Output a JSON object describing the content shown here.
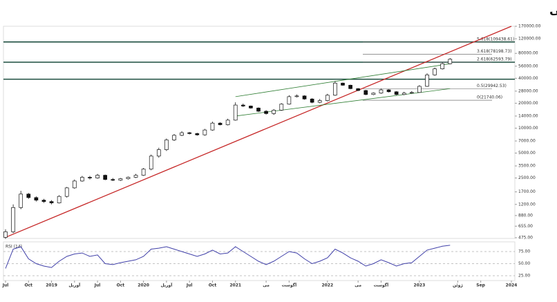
{
  "chart_data": {
    "type": "candlestick",
    "title": "فینتا – تایم فریم هفتگی",
    "log_scale": true,
    "x": [
      "2018-07",
      "2018-08",
      "2018-09",
      "2018-10",
      "2018-11",
      "2018-12",
      "2019-01",
      "2019-02",
      "2019-03",
      "2019-04",
      "2019-05",
      "2019-06",
      "2019-07",
      "2019-08",
      "2019-09",
      "2019-10",
      "2019-11",
      "2019-12",
      "2020-01",
      "2020-02",
      "2020-03",
      "2020-04",
      "2020-05",
      "2020-06",
      "2020-07",
      "2020-08",
      "2020-09",
      "2020-10",
      "2020-11",
      "2020-12",
      "2021-01",
      "2021-02",
      "2021-03",
      "2021-04",
      "2021-05",
      "2021-06",
      "2021-07",
      "2021-08",
      "2021-09",
      "2021-10",
      "2021-11",
      "2021-12",
      "2022-01",
      "2022-02",
      "2022-03",
      "2022-04",
      "2022-05",
      "2022-06",
      "2022-07",
      "2022-08",
      "2022-09",
      "2022-10",
      "2022-11",
      "2022-12",
      "2023-01",
      "2023-02",
      "2023-03",
      "2023-04",
      "2023-05"
    ],
    "open": [
      480,
      560,
      1100,
      1600,
      1450,
      1350,
      1300,
      1250,
      1500,
      1900,
      2300,
      2550,
      2500,
      2700,
      2400,
      2350,
      2450,
      2550,
      2700,
      3200,
      4600,
      5500,
      7200,
      8200,
      8800,
      8600,
      8300,
      9500,
      11500,
      11000,
      12500,
      19000,
      18500,
      17500,
      16000,
      15000,
      16500,
      19500,
      24000,
      24500,
      22500,
      20500,
      21500,
      25000,
      35000,
      33000,
      30000,
      28500,
      25500,
      26500,
      29000,
      27500,
      25500,
      26500,
      27000,
      32000,
      44000,
      52000,
      60000
    ],
    "high": [
      600,
      1200,
      1750,
      1650,
      1500,
      1400,
      1350,
      1550,
      1950,
      2400,
      2650,
      2650,
      2800,
      2750,
      2500,
      2500,
      2600,
      2800,
      3300,
      4800,
      5800,
      7500,
      8500,
      9200,
      9000,
      8800,
      9800,
      12000,
      11800,
      13000,
      20500,
      19800,
      18800,
      17800,
      16500,
      17000,
      20000,
      25000,
      25500,
      25000,
      23000,
      22500,
      26000,
      37000,
      35500,
      33500,
      30500,
      29000,
      27000,
      30000,
      29500,
      28000,
      27500,
      28000,
      33000,
      46000,
      54000,
      62000,
      70000
    ],
    "low": [
      460,
      540,
      1050,
      1400,
      1300,
      1250,
      1200,
      1230,
      1450,
      1850,
      2250,
      2400,
      2450,
      2350,
      2300,
      2300,
      2400,
      2500,
      2650,
      3100,
      4400,
      5300,
      7000,
      8000,
      8400,
      8100,
      8100,
      9300,
      10800,
      10800,
      12300,
      18000,
      17200,
      15700,
      14600,
      14500,
      16200,
      19200,
      23500,
      22000,
      20000,
      20000,
      21000,
      24500,
      32500,
      29500,
      28000,
      25000,
      25000,
      26000,
      27000,
      25000,
      25000,
      26000,
      26800,
      31500,
      43000,
      51000,
      59000
    ],
    "close": [
      560,
      1100,
      1600,
      1450,
      1350,
      1300,
      1250,
      1500,
      1900,
      2300,
      2550,
      2500,
      2700,
      2400,
      2350,
      2450,
      2550,
      2700,
      3200,
      4600,
      5500,
      7200,
      8200,
      8800,
      8600,
      8300,
      9500,
      11500,
      11000,
      12500,
      19000,
      18500,
      17500,
      16000,
      15000,
      16500,
      19500,
      24000,
      24500,
      22500,
      20500,
      21500,
      25000,
      35000,
      33000,
      30000,
      28500,
      25500,
      26500,
      29000,
      27500,
      25500,
      26500,
      27000,
      32000,
      44000,
      52000,
      60000,
      68000
    ],
    "ylim": [
      475,
      170000
    ],
    "yticks": [
      {
        "value": 170000,
        "label": "170000.00"
      },
      {
        "value": 120000,
        "label": "120000.00"
      },
      {
        "value": 80000,
        "label": "80000.00"
      },
      {
        "value": 56000,
        "label": "56000.00"
      },
      {
        "value": 40000,
        "label": "40000.00"
      },
      {
        "value": 28000,
        "label": "28000.00"
      },
      {
        "value": 20000,
        "label": "20000.00"
      },
      {
        "value": 14000,
        "label": "14000.00"
      },
      {
        "value": 10000,
        "label": "10000.00"
      },
      {
        "value": 7000,
        "label": "7000.00"
      },
      {
        "value": 5000,
        "label": "5000.00"
      },
      {
        "value": 3500,
        "label": "3500.00"
      },
      {
        "value": 2500,
        "label": "2500.00"
      },
      {
        "value": 1700,
        "label": "1700.00"
      },
      {
        "value": 1200,
        "label": "1200.00"
      },
      {
        "value": 880,
        "label": "880.00"
      },
      {
        "value": 655,
        "label": "655.00"
      },
      {
        "value": 475,
        "label": "475.00"
      }
    ],
    "xlim": [
      "2018-07",
      "2024-01"
    ],
    "xticks": [
      {
        "value": "2018-07",
        "label": "Jul"
      },
      {
        "value": "2018-10",
        "label": "Oct"
      },
      {
        "value": "2019-01",
        "label": "2019"
      },
      {
        "value": "2019-04",
        "label": "آوریل"
      },
      {
        "value": "2019-07",
        "label": "Jul"
      },
      {
        "value": "2019-10",
        "label": "Oct"
      },
      {
        "value": "2020-01",
        "label": "2020"
      },
      {
        "value": "2020-04",
        "label": "آوریل"
      },
      {
        "value": "2020-07",
        "label": "Jul"
      },
      {
        "value": "2020-10",
        "label": "Oct"
      },
      {
        "value": "2021-01",
        "label": "2021"
      },
      {
        "value": "2021-05",
        "label": "می"
      },
      {
        "value": "2021-08",
        "label": "آگوست"
      },
      {
        "value": "2022-01",
        "label": "2022"
      },
      {
        "value": "2022-05",
        "label": "می"
      },
      {
        "value": "2022-08",
        "label": "آگوست"
      },
      {
        "value": "2023-01",
        "label": "2023"
      },
      {
        "value": "2023-06",
        "label": "ژوئن"
      },
      {
        "value": "2023-09",
        "label": "Sep"
      },
      {
        "value": "2024-01",
        "label": "2024"
      }
    ],
    "fib_levels": [
      {
        "value": 109438.61,
        "label": "5.618(109438.61)"
      },
      {
        "value": 78198.73,
        "label": "3.618(78198.73)"
      },
      {
        "value": 62593.79,
        "label": "2.618(62593.79)"
      },
      {
        "value": 29942.53,
        "label": "0.5(29942.53)"
      },
      {
        "value": 21740.06,
        "label": "0(21740.06)"
      }
    ],
    "levels": [
      110000,
      62600,
      39000
    ],
    "trendlines": [
      {
        "color": "#c62828",
        "x": [
          "2018-07",
          "2024-01"
        ],
        "values": [
          480,
          170000
        ]
      },
      {
        "color": "#2e7d32",
        "x": [
          "2021-01",
          "2023-05"
        ],
        "values": [
          24000,
          60000
        ]
      },
      {
        "color": "#2e7d32",
        "x": [
          "2021-01",
          "2023-05"
        ],
        "values": [
          14000,
          30000
        ]
      }
    ],
    "rsi": {
      "name": "RSI (14)",
      "color": "#3f3fa8",
      "ylim": [
        15,
        95
      ],
      "yticks": [
        {
          "value": 75,
          "label": "75.00"
        },
        {
          "value": 50,
          "label": "50.00"
        },
        {
          "value": 25,
          "label": "25.00"
        }
      ],
      "values": [
        40,
        80,
        85,
        60,
        50,
        45,
        42,
        55,
        65,
        70,
        72,
        65,
        68,
        50,
        48,
        52,
        55,
        58,
        65,
        80,
        82,
        85,
        80,
        75,
        70,
        65,
        70,
        78,
        70,
        72,
        85,
        75,
        65,
        55,
        48,
        55,
        65,
        75,
        72,
        60,
        50,
        55,
        62,
        80,
        72,
        62,
        55,
        45,
        50,
        58,
        52,
        45,
        50,
        52,
        65,
        78,
        82,
        86,
        88
      ]
    }
  }
}
